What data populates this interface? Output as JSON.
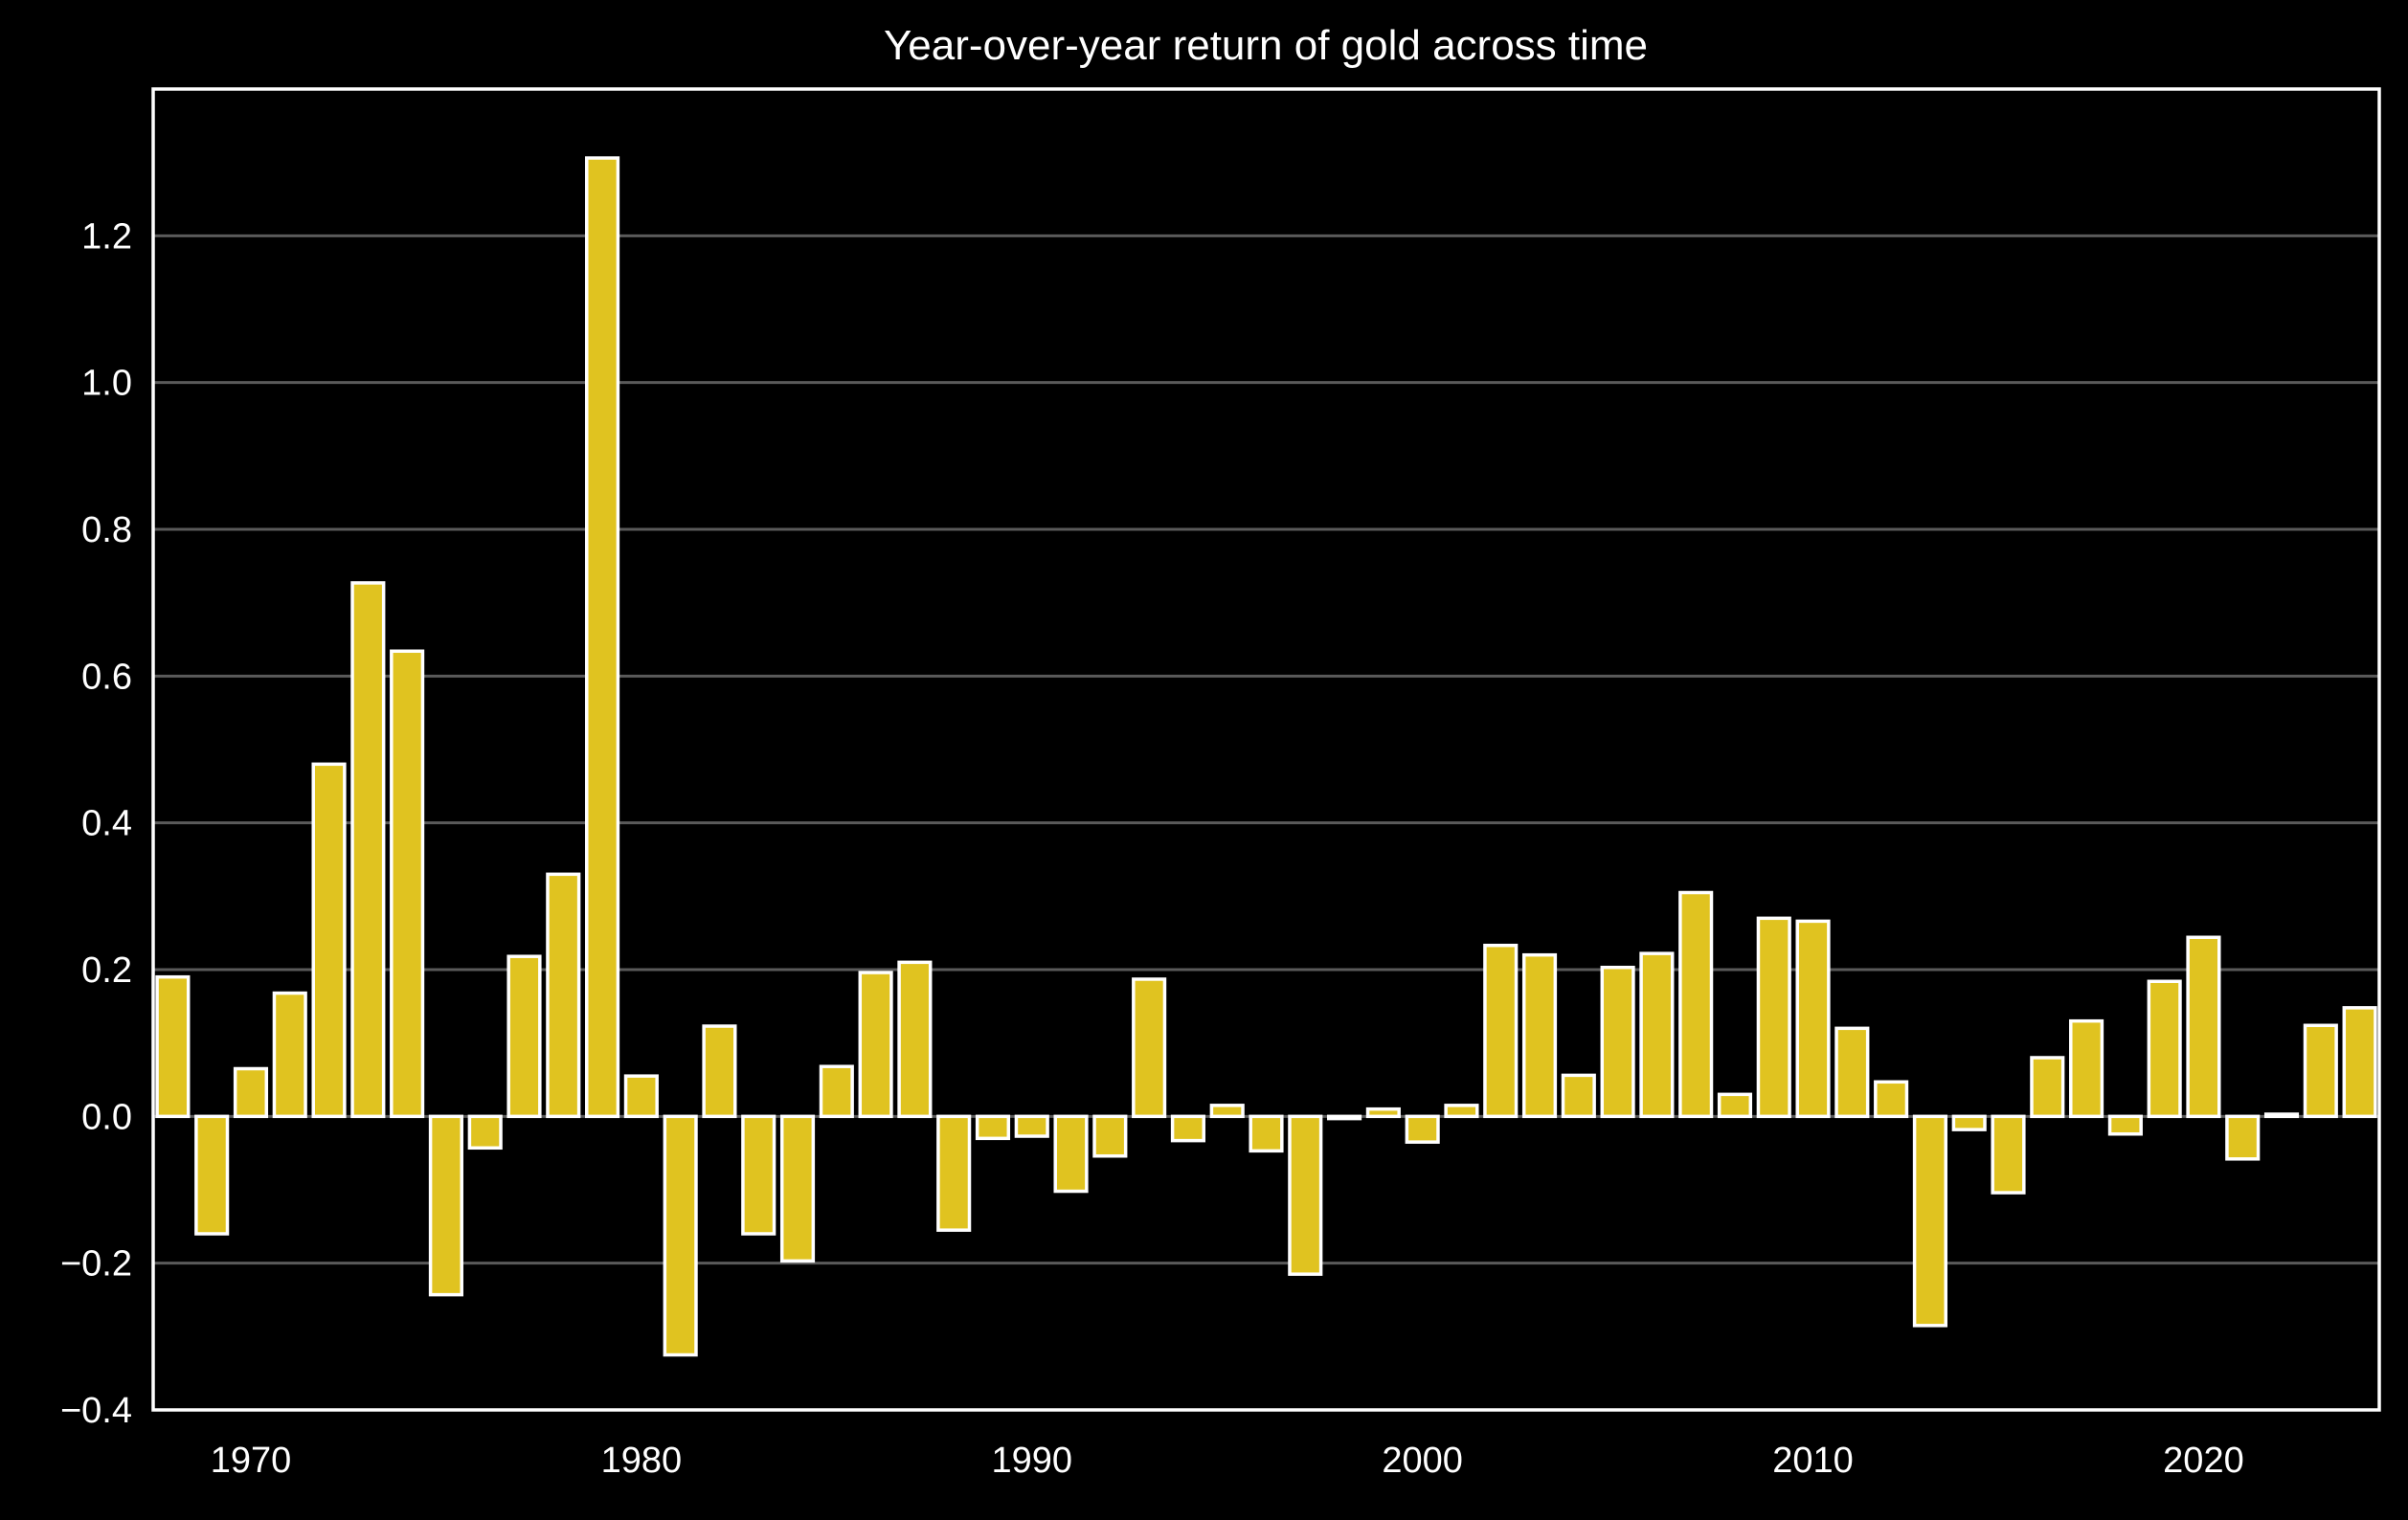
{
  "chart_data": {
    "type": "bar",
    "title": "Year-over-year return of gold across time",
    "xlabel": "",
    "ylabel": "",
    "x": [
      1968,
      1969,
      1970,
      1971,
      1972,
      1973,
      1974,
      1975,
      1976,
      1977,
      1978,
      1979,
      1980,
      1981,
      1982,
      1983,
      1984,
      1985,
      1986,
      1987,
      1988,
      1989,
      1990,
      1991,
      1992,
      1993,
      1994,
      1995,
      1996,
      1997,
      1998,
      1999,
      2000,
      2001,
      2002,
      2003,
      2004,
      2005,
      2006,
      2007,
      2008,
      2009,
      2010,
      2011,
      2012,
      2013,
      2014,
      2015,
      2016,
      2017,
      2018,
      2019,
      2020,
      2021,
      2022,
      2023,
      2024
    ],
    "values": [
      0.19,
      -0.16,
      0.065,
      0.168,
      0.48,
      0.727,
      0.634,
      -0.243,
      -0.043,
      0.218,
      0.33,
      1.306,
      0.055,
      -0.325,
      0.123,
      -0.16,
      -0.197,
      0.068,
      0.196,
      0.21,
      -0.155,
      -0.03,
      -0.027,
      -0.102,
      -0.054,
      0.187,
      -0.033,
      0.015,
      -0.047,
      -0.215,
      -0.003,
      0.01,
      -0.035,
      0.015,
      0.233,
      0.22,
      0.056,
      0.203,
      0.222,
      0.305,
      0.03,
      0.27,
      0.266,
      0.12,
      0.047,
      -0.285,
      -0.018,
      -0.104,
      0.08,
      0.13,
      -0.024,
      0.184,
      0.244,
      -0.058,
      0.003,
      0.124,
      0.148
    ],
    "xlim": [
      1967.5,
      2024.5
    ],
    "ylim": [
      -0.4,
      1.4
    ],
    "x_ticks": [
      "1970",
      "1980",
      "1990",
      "2000",
      "2010",
      "2020"
    ],
    "y_ticks": [
      "−0.4",
      "−0.2",
      "0.0",
      "0.2",
      "0.4",
      "0.6",
      "0.8",
      "1.0",
      "1.2"
    ],
    "grid": "horizontal",
    "colors": {
      "background": "#000000",
      "bar_fill": "#e0c320",
      "bar_edge": "#ffffff",
      "grid": "#5a5a5a",
      "text": "#ffffff"
    }
  }
}
